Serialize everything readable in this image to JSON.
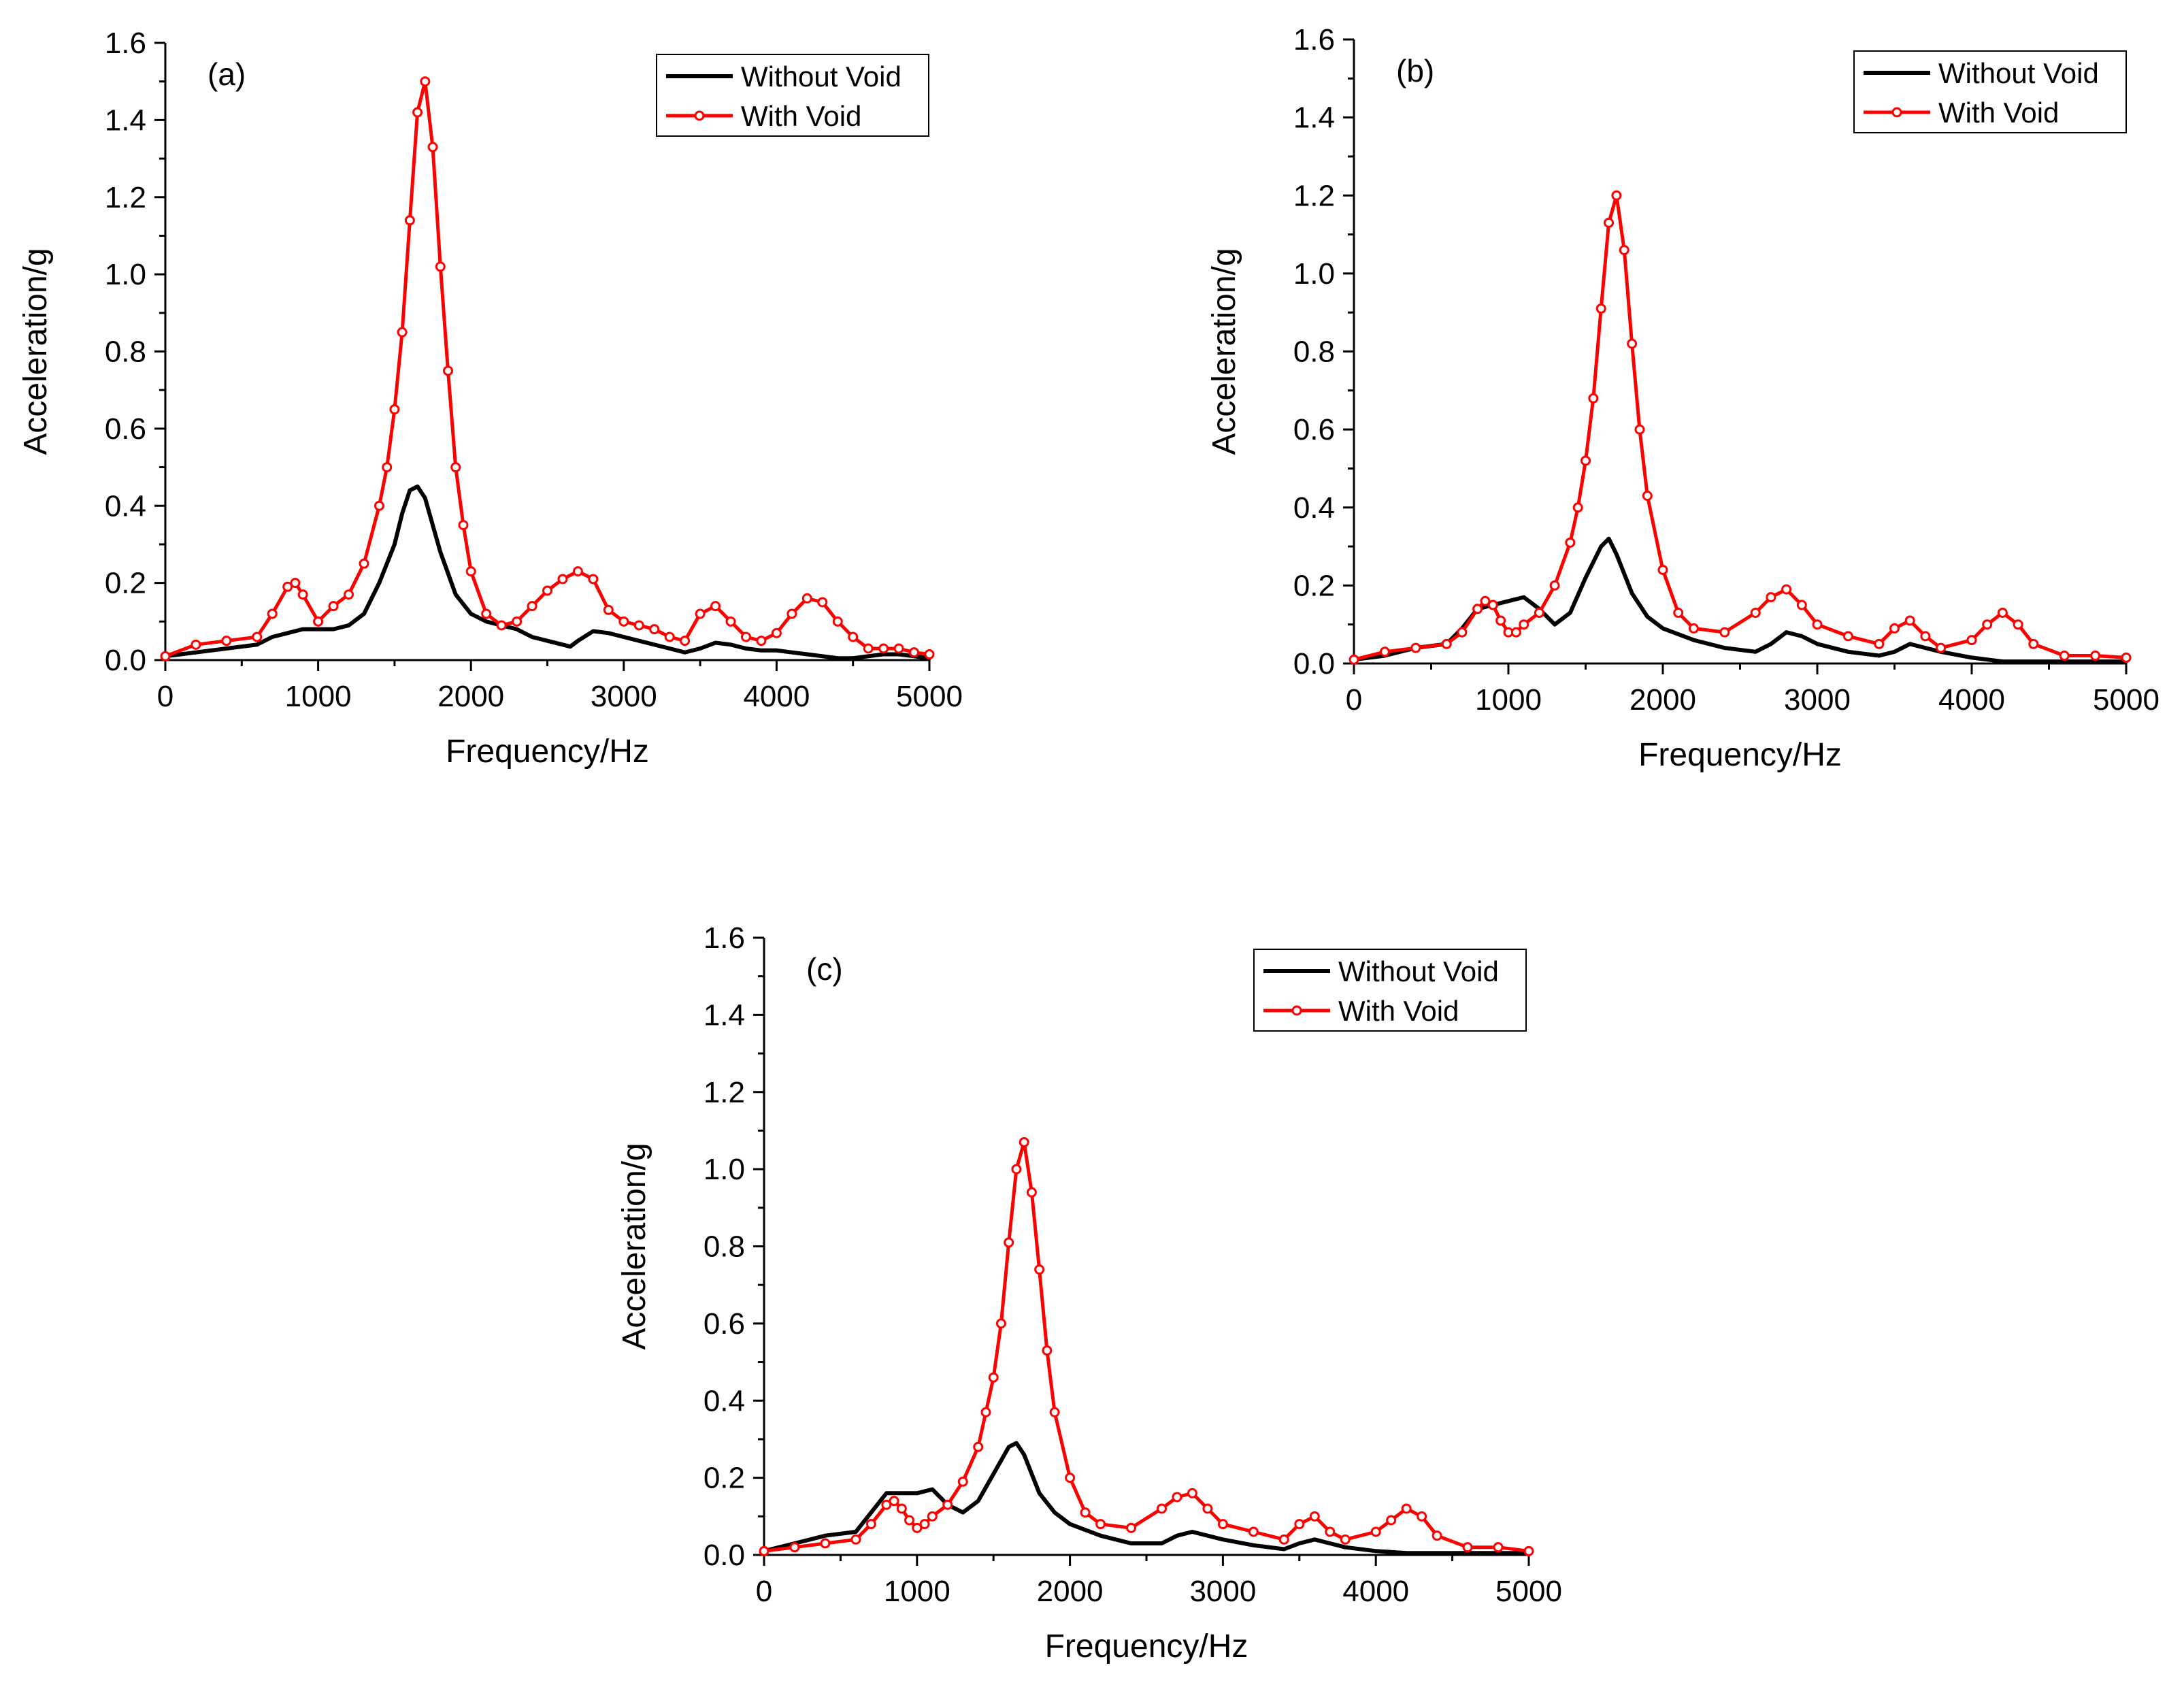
{
  "chart_data": [
    {
      "type": "line",
      "panel_label": "(a)",
      "xlabel": "Frequency/Hz",
      "ylabel": "Acceleration/g",
      "xlim": [
        0,
        5000
      ],
      "ylim": [
        0,
        1.6
      ],
      "x_ticks": [
        "0",
        "1000",
        "2000",
        "3000",
        "4000",
        "5000"
      ],
      "y_ticks": [
        "0.0",
        "0.2",
        "0.4",
        "0.6",
        "0.8",
        "1.0",
        "1.2",
        "1.4",
        "1.6"
      ],
      "legend_position": "top-right",
      "series": [
        {
          "name": "Without Void",
          "color": "#000000",
          "marker": "none",
          "x": [
            0,
            200,
            400,
            600,
            700,
            800,
            900,
            1000,
            1100,
            1200,
            1300,
            1400,
            1500,
            1550,
            1600,
            1650,
            1700,
            1750,
            1800,
            1900,
            2000,
            2100,
            2200,
            2300,
            2400,
            2500,
            2600,
            2650,
            2700,
            2800,
            2900,
            3000,
            3100,
            3200,
            3300,
            3400,
            3500,
            3600,
            3700,
            3800,
            3900,
            4000,
            4100,
            4200,
            4300,
            4400,
            4500,
            4600,
            4700,
            4800,
            4900,
            5000
          ],
          "y": [
            0.01,
            0.02,
            0.03,
            0.04,
            0.06,
            0.07,
            0.08,
            0.08,
            0.08,
            0.09,
            0.12,
            0.2,
            0.3,
            0.38,
            0.44,
            0.45,
            0.42,
            0.35,
            0.28,
            0.17,
            0.12,
            0.1,
            0.09,
            0.08,
            0.06,
            0.05,
            0.04,
            0.035,
            0.05,
            0.075,
            0.07,
            0.06,
            0.05,
            0.04,
            0.03,
            0.02,
            0.03,
            0.045,
            0.04,
            0.03,
            0.025,
            0.025,
            0.02,
            0.015,
            0.01,
            0.005,
            0.005,
            0.01,
            0.015,
            0.015,
            0.01,
            0.005
          ]
        },
        {
          "name": "With Void",
          "color": "#ff0000",
          "marker": "circle",
          "x": [
            0,
            200,
            400,
            600,
            700,
            800,
            850,
            900,
            1000,
            1100,
            1200,
            1300,
            1400,
            1450,
            1500,
            1550,
            1600,
            1650,
            1700,
            1750,
            1800,
            1850,
            1900,
            1950,
            2000,
            2100,
            2200,
            2300,
            2400,
            2500,
            2600,
            2700,
            2800,
            2900,
            3000,
            3100,
            3200,
            3300,
            3400,
            3500,
            3600,
            3700,
            3800,
            3900,
            4000,
            4100,
            4200,
            4300,
            4400,
            4500,
            4600,
            4700,
            4800,
            4900,
            5000
          ],
          "y": [
            0.01,
            0.04,
            0.05,
            0.06,
            0.12,
            0.19,
            0.2,
            0.17,
            0.1,
            0.14,
            0.17,
            0.25,
            0.4,
            0.5,
            0.65,
            0.85,
            1.14,
            1.42,
            1.5,
            1.33,
            1.02,
            0.75,
            0.5,
            0.35,
            0.23,
            0.12,
            0.09,
            0.1,
            0.14,
            0.18,
            0.21,
            0.23,
            0.21,
            0.13,
            0.1,
            0.09,
            0.08,
            0.06,
            0.05,
            0.12,
            0.14,
            0.1,
            0.06,
            0.05,
            0.07,
            0.12,
            0.16,
            0.15,
            0.1,
            0.06,
            0.03,
            0.03,
            0.03,
            0.02,
            0.015
          ]
        }
      ]
    },
    {
      "type": "line",
      "panel_label": "(b)",
      "xlabel": "Frequency/Hz",
      "ylabel": "Acceleration/g",
      "xlim": [
        0,
        5000
      ],
      "ylim": [
        0,
        1.6
      ],
      "x_ticks": [
        "0",
        "1000",
        "2000",
        "3000",
        "4000",
        "5000"
      ],
      "y_ticks": [
        "0.0",
        "0.2",
        "0.4",
        "0.6",
        "0.8",
        "1.0",
        "1.2",
        "1.4",
        "1.6"
      ],
      "legend_position": "top-right",
      "series": [
        {
          "name": "Without Void",
          "color": "#000000",
          "marker": "none",
          "x": [
            0,
            200,
            400,
            600,
            700,
            800,
            900,
            1000,
            1100,
            1200,
            1300,
            1400,
            1500,
            1600,
            1650,
            1700,
            1800,
            1900,
            2000,
            2200,
            2400,
            2600,
            2700,
            2800,
            2900,
            3000,
            3200,
            3400,
            3500,
            3600,
            3700,
            3800,
            4000,
            4200,
            4400,
            4600,
            4800,
            5000
          ],
          "y": [
            0.01,
            0.02,
            0.04,
            0.05,
            0.09,
            0.14,
            0.15,
            0.16,
            0.17,
            0.14,
            0.1,
            0.13,
            0.22,
            0.3,
            0.32,
            0.28,
            0.18,
            0.12,
            0.09,
            0.06,
            0.04,
            0.03,
            0.05,
            0.08,
            0.07,
            0.05,
            0.03,
            0.02,
            0.03,
            0.05,
            0.04,
            0.03,
            0.015,
            0.005,
            0.005,
            0.005,
            0.005,
            0.005
          ]
        },
        {
          "name": "With Void",
          "color": "#ff0000",
          "marker": "circle",
          "x": [
            0,
            200,
            400,
            600,
            700,
            800,
            850,
            900,
            950,
            1000,
            1050,
            1100,
            1200,
            1300,
            1400,
            1450,
            1500,
            1550,
            1600,
            1650,
            1700,
            1750,
            1800,
            1850,
            1900,
            2000,
            2100,
            2200,
            2400,
            2600,
            2700,
            2800,
            2900,
            3000,
            3200,
            3400,
            3500,
            3600,
            3700,
            3800,
            4000,
            4100,
            4200,
            4300,
            4400,
            4600,
            4800,
            5000
          ],
          "y": [
            0.01,
            0.03,
            0.04,
            0.05,
            0.08,
            0.14,
            0.16,
            0.15,
            0.11,
            0.08,
            0.08,
            0.1,
            0.13,
            0.2,
            0.31,
            0.4,
            0.52,
            0.68,
            0.91,
            1.13,
            1.2,
            1.06,
            0.82,
            0.6,
            0.43,
            0.24,
            0.13,
            0.09,
            0.08,
            0.13,
            0.17,
            0.19,
            0.15,
            0.1,
            0.07,
            0.05,
            0.09,
            0.11,
            0.07,
            0.04,
            0.06,
            0.1,
            0.13,
            0.1,
            0.05,
            0.02,
            0.02,
            0.015
          ]
        }
      ]
    },
    {
      "type": "line",
      "panel_label": "(c)",
      "xlabel": "Frequency/Hz",
      "ylabel": "Acceleration/g",
      "xlim": [
        0,
        5000
      ],
      "ylim": [
        0,
        1.6
      ],
      "x_ticks": [
        "0",
        "1000",
        "2000",
        "3000",
        "4000",
        "5000"
      ],
      "y_ticks": [
        "0.0",
        "0.2",
        "0.4",
        "0.6",
        "0.8",
        "1.0",
        "1.2",
        "1.4",
        "1.6"
      ],
      "legend_position": "top-right",
      "series": [
        {
          "name": "Without Void",
          "color": "#000000",
          "marker": "none",
          "x": [
            0,
            200,
            400,
            600,
            700,
            800,
            900,
            1000,
            1100,
            1200,
            1300,
            1400,
            1500,
            1600,
            1650,
            1700,
            1800,
            1900,
            2000,
            2200,
            2400,
            2600,
            2700,
            2800,
            2900,
            3000,
            3200,
            3400,
            3500,
            3600,
            3700,
            3800,
            4000,
            4200,
            4400,
            4600,
            4800,
            5000
          ],
          "y": [
            0.01,
            0.03,
            0.05,
            0.06,
            0.11,
            0.16,
            0.16,
            0.16,
            0.17,
            0.13,
            0.11,
            0.14,
            0.21,
            0.28,
            0.29,
            0.26,
            0.16,
            0.11,
            0.08,
            0.05,
            0.03,
            0.03,
            0.05,
            0.06,
            0.05,
            0.04,
            0.025,
            0.015,
            0.03,
            0.04,
            0.03,
            0.02,
            0.01,
            0.005,
            0.005,
            0.005,
            0.005,
            0.005
          ]
        },
        {
          "name": "With Void",
          "color": "#ff0000",
          "marker": "circle",
          "x": [
            0,
            200,
            400,
            600,
            700,
            800,
            850,
            900,
            950,
            1000,
            1050,
            1100,
            1200,
            1300,
            1400,
            1450,
            1500,
            1550,
            1600,
            1650,
            1700,
            1750,
            1800,
            1850,
            1900,
            2000,
            2100,
            2200,
            2400,
            2600,
            2700,
            2800,
            2900,
            3000,
            3200,
            3400,
            3500,
            3600,
            3700,
            3800,
            4000,
            4100,
            4200,
            4300,
            4400,
            4600,
            4800,
            5000
          ],
          "y": [
            0.01,
            0.02,
            0.03,
            0.04,
            0.08,
            0.13,
            0.14,
            0.12,
            0.09,
            0.07,
            0.08,
            0.1,
            0.13,
            0.19,
            0.28,
            0.37,
            0.46,
            0.6,
            0.81,
            1.0,
            1.07,
            0.94,
            0.74,
            0.53,
            0.37,
            0.2,
            0.11,
            0.08,
            0.07,
            0.12,
            0.15,
            0.16,
            0.12,
            0.08,
            0.06,
            0.04,
            0.08,
            0.1,
            0.06,
            0.04,
            0.06,
            0.09,
            0.12,
            0.1,
            0.05,
            0.02,
            0.02,
            0.01
          ]
        }
      ]
    }
  ]
}
